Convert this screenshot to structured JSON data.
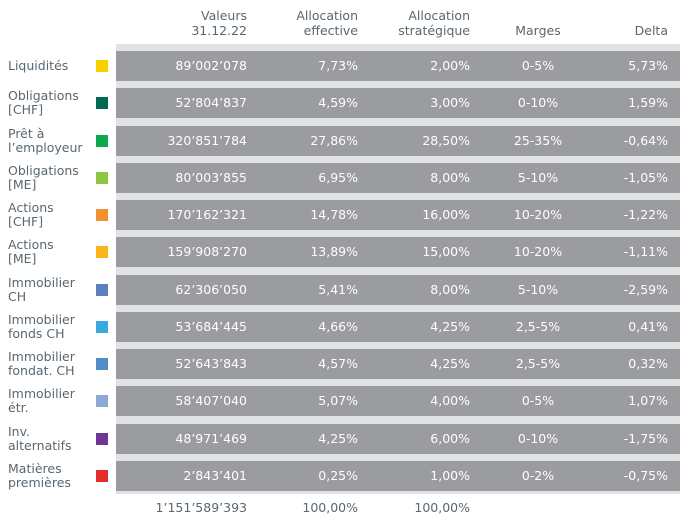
{
  "headers": {
    "valeurs": [
      "Valeurs",
      "31.12.22"
    ],
    "alloc_eff": [
      "Allocation",
      "effective"
    ],
    "alloc_strat": [
      "Allocation",
      "stratégique"
    ],
    "marges": "Marges",
    "delta": "Delta"
  },
  "rows": [
    {
      "label": [
        "Liquidités"
      ],
      "color": "#f5d100",
      "valeur": "89’002’078",
      "eff": "7,73%",
      "strat": "2,00%",
      "marges": "0-5%",
      "delta": "5,73%"
    },
    {
      "label": [
        "Obligations",
        "[CHF]"
      ],
      "color": "#006b52",
      "valeur": "52’804’837",
      "eff": "4,59%",
      "strat": "3,00%",
      "marges": "0-10%",
      "delta": "1,59%"
    },
    {
      "label": [
        "Prêt à",
        "l’employeur"
      ],
      "color": "#10a84c",
      "valeur": "320’851’784",
      "eff": "27,86%",
      "strat": "28,50%",
      "marges": "25-35%",
      "delta": "-0,64%"
    },
    {
      "label": [
        "Obligations",
        "[ME]"
      ],
      "color": "#8dc63f",
      "valeur": "80’003’855",
      "eff": "6,95%",
      "strat": "8,00%",
      "marges": "5-10%",
      "delta": "-1,05%"
    },
    {
      "label": [
        "Actions",
        "[CHF]"
      ],
      "color": "#f39031",
      "valeur": "170’162’321",
      "eff": "14,78%",
      "strat": "16,00%",
      "marges": "10-20%",
      "delta": "-1,22%"
    },
    {
      "label": [
        "Actions",
        "[ME]"
      ],
      "color": "#fbb41c",
      "valeur": "159’908’270",
      "eff": "13,89%",
      "strat": "15,00%",
      "marges": "10-20%",
      "delta": "-1,11%"
    },
    {
      "label": [
        "Immobilier",
        "CH"
      ],
      "color": "#5b7fbf",
      "valeur": "62’306’050",
      "eff": "5,41%",
      "strat": "8,00%",
      "marges": "5-10%",
      "delta": "-2,59%"
    },
    {
      "label": [
        "Immobilier",
        "fonds CH"
      ],
      "color": "#3ba8dd",
      "valeur": "53’684’445",
      "eff": "4,66%",
      "strat": "4,25%",
      "marges": "2,5-5%",
      "delta": "0,41%"
    },
    {
      "label": [
        "Immobilier",
        "fondat. CH"
      ],
      "color": "#4f8fc6",
      "valeur": "52’643’843",
      "eff": "4,57%",
      "strat": "4,25%",
      "marges": "2,5-5%",
      "delta": "0,32%"
    },
    {
      "label": [
        "Immobilier",
        "étr."
      ],
      "color": "#8ea8d6",
      "valeur": "58’407’040",
      "eff": "5,07%",
      "strat": "4,00%",
      "marges": "0-5%",
      "delta": "1,07%"
    },
    {
      "label": [
        "Inv.",
        "alternatifs"
      ],
      "color": "#6e3596",
      "valeur": "48’971’469",
      "eff": "4,25%",
      "strat": "6,00%",
      "marges": "0-10%",
      "delta": "-1,75%"
    },
    {
      "label": [
        "Matières",
        "premières"
      ],
      "color": "#e32d2d",
      "valeur": "2’843’401",
      "eff": "0,25%",
      "strat": "1,00%",
      "marges": "0-2%",
      "delta": "-0,75%"
    }
  ],
  "totals": {
    "valeur": "1’151’589’393",
    "eff": "100,00%",
    "strat": "100,00%"
  }
}
